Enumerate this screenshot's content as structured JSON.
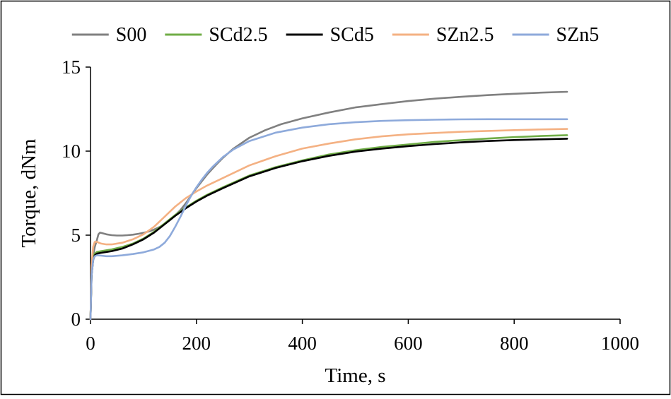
{
  "chart_data": {
    "type": "line",
    "title": "",
    "xlabel": "Time, s",
    "ylabel": "Torque, dNm",
    "xlim": [
      0,
      1000
    ],
    "ylim": [
      0,
      15
    ],
    "xticks": [
      0,
      200,
      400,
      600,
      800,
      1000
    ],
    "yticks": [
      0,
      5,
      10,
      15
    ],
    "grid": false,
    "legend_position": "top",
    "series": [
      {
        "name": "S00",
        "color": "#808080",
        "x": [
          0,
          2,
          5,
          8,
          12,
          15,
          18,
          22,
          30,
          40,
          50,
          60,
          70,
          80,
          90,
          100,
          110,
          120,
          130,
          140,
          150,
          160,
          170,
          180,
          190,
          200,
          210,
          220,
          230,
          240,
          250,
          270,
          300,
          330,
          360,
          400,
          450,
          500,
          550,
          600,
          650,
          700,
          750,
          800,
          850,
          900
        ],
        "y": [
          0,
          2.8,
          3.8,
          4.3,
          4.7,
          5.05,
          5.15,
          5.12,
          5.05,
          5.0,
          4.98,
          4.98,
          5.0,
          5.03,
          5.08,
          5.14,
          5.22,
          5.33,
          5.48,
          5.67,
          5.9,
          6.18,
          6.5,
          6.9,
          7.35,
          7.8,
          8.2,
          8.6,
          8.95,
          9.28,
          9.6,
          10.15,
          10.8,
          11.25,
          11.6,
          11.95,
          12.3,
          12.6,
          12.8,
          12.98,
          13.12,
          13.23,
          13.33,
          13.41,
          13.48,
          13.53
        ]
      },
      {
        "name": "SCd2.5",
        "color": "#70ad47",
        "x": [
          0,
          2,
          5,
          8,
          12,
          20,
          30,
          40,
          60,
          80,
          100,
          120,
          140,
          160,
          180,
          200,
          220,
          250,
          300,
          350,
          400,
          450,
          500,
          550,
          600,
          650,
          700,
          750,
          800,
          850,
          900
        ],
        "y": [
          0,
          2.8,
          3.6,
          3.9,
          4.0,
          4.05,
          4.1,
          4.15,
          4.3,
          4.5,
          4.8,
          5.2,
          5.7,
          6.2,
          6.65,
          7.05,
          7.4,
          7.85,
          8.55,
          9.05,
          9.45,
          9.8,
          10.05,
          10.25,
          10.4,
          10.55,
          10.65,
          10.75,
          10.83,
          10.9,
          10.95
        ]
      },
      {
        "name": "SCd5",
        "color": "#000000",
        "x": [
          0,
          2,
          5,
          8,
          12,
          20,
          30,
          40,
          60,
          80,
          100,
          120,
          140,
          160,
          180,
          200,
          220,
          250,
          300,
          350,
          400,
          450,
          500,
          550,
          600,
          650,
          700,
          750,
          800,
          850,
          900
        ],
        "y": [
          0,
          2.6,
          3.5,
          3.8,
          3.9,
          3.95,
          4.0,
          4.05,
          4.2,
          4.45,
          4.75,
          5.15,
          5.65,
          6.15,
          6.6,
          7.0,
          7.35,
          7.8,
          8.5,
          9.0,
          9.4,
          9.72,
          9.97,
          10.15,
          10.3,
          10.42,
          10.52,
          10.6,
          10.66,
          10.7,
          10.74
        ]
      },
      {
        "name": "SZn2.5",
        "color": "#f4b183",
        "x": [
          0,
          2,
          5,
          8,
          12,
          20,
          30,
          40,
          60,
          80,
          100,
          120,
          140,
          160,
          180,
          200,
          220,
          250,
          300,
          350,
          400,
          450,
          500,
          550,
          600,
          650,
          700,
          750,
          800,
          850,
          900
        ],
        "y": [
          0,
          3.2,
          4.3,
          4.6,
          4.6,
          4.5,
          4.45,
          4.45,
          4.55,
          4.75,
          5.05,
          5.5,
          6.1,
          6.7,
          7.2,
          7.6,
          7.95,
          8.4,
          9.15,
          9.7,
          10.15,
          10.45,
          10.7,
          10.88,
          11.0,
          11.08,
          11.15,
          11.2,
          11.25,
          11.29,
          11.32
        ]
      },
      {
        "name": "SZn5",
        "color": "#8eaadb",
        "x": [
          0,
          2,
          5,
          8,
          12,
          20,
          30,
          40,
          60,
          80,
          100,
          120,
          130,
          140,
          150,
          160,
          170,
          180,
          190,
          200,
          210,
          220,
          230,
          240,
          250,
          270,
          300,
          350,
          400,
          450,
          500,
          550,
          600,
          650,
          700,
          750,
          800,
          850,
          900
        ],
        "y": [
          0,
          2.6,
          3.5,
          3.75,
          3.8,
          3.78,
          3.75,
          3.75,
          3.8,
          3.88,
          3.98,
          4.15,
          4.3,
          4.55,
          4.95,
          5.5,
          6.1,
          6.75,
          7.35,
          7.85,
          8.3,
          8.7,
          9.05,
          9.35,
          9.65,
          10.1,
          10.6,
          11.1,
          11.4,
          11.6,
          11.72,
          11.8,
          11.84,
          11.87,
          11.89,
          11.9,
          11.9,
          11.9,
          11.9
        ]
      }
    ]
  }
}
